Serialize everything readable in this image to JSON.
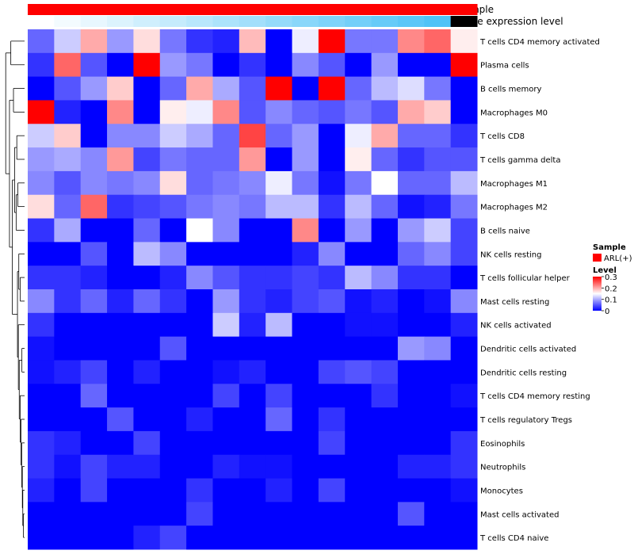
{
  "chart_data": {
    "type": "heatmap",
    "annotation_labels": {
      "sample": "Sample",
      "gene_expression_level": "Gene expression level"
    },
    "annotation_colors": {
      "sample": "#ff0000",
      "gene_expression_low": "#ffffff",
      "gene_expression_high": "#4fc3f7"
    },
    "gene_expression_levels": [
      0.0,
      0.07,
      0.13,
      0.2,
      0.27,
      0.33,
      0.4,
      0.47,
      0.53,
      0.6,
      0.67,
      0.73,
      0.8,
      0.87,
      0.93,
      1.0
    ],
    "rows": [
      "T cells CD4 memory activated",
      "Plasma cells",
      "B cells memory",
      "Macrophages M0",
      "T cells CD8",
      "T cells gamma delta",
      "Macrophages M1",
      "Macrophages M2",
      "B cells naive",
      "NK cells resting",
      "T cells follicular helper",
      "Mast cells resting",
      "NK cells activated",
      "Dendritic cells activated",
      "Dendritic cells resting",
      "T cells CD4 memory resting",
      "T cells regulatory  Tregs",
      "Eosinophils",
      "Neutrophils",
      "Monocytes",
      "Mast cells activated",
      "T cells CD4 naive"
    ],
    "values": [
      [
        0.06,
        0.12,
        0.2,
        0.09,
        0.17,
        0.07,
        0.03,
        0.02,
        0.19,
        0.0,
        0.14,
        0.3,
        0.07,
        0.07,
        0.22,
        0.24,
        0.16
      ],
      [
        0.03,
        0.24,
        0.05,
        0.0,
        0.3,
        0.09,
        0.07,
        0.0,
        0.03,
        0.0,
        0.08,
        0.05,
        0.0,
        0.09,
        0.0,
        0.0,
        0.3
      ],
      [
        0.0,
        0.05,
        0.09,
        0.18,
        0.0,
        0.06,
        0.2,
        0.1,
        0.05,
        0.3,
        0.0,
        0.3,
        0.06,
        0.11,
        0.13,
        0.07,
        0.0
      ],
      [
        0.3,
        0.02,
        0.0,
        0.22,
        0.0,
        0.16,
        0.14,
        0.22,
        0.05,
        0.08,
        0.06,
        0.05,
        0.07,
        0.05,
        0.2,
        0.18,
        0.0
      ],
      [
        0.12,
        0.18,
        0.0,
        0.08,
        0.08,
        0.12,
        0.1,
        0.06,
        0.26,
        0.06,
        0.09,
        0.0,
        0.14,
        0.2,
        0.06,
        0.06,
        0.03
      ],
      [
        0.09,
        0.1,
        0.08,
        0.21,
        0.04,
        0.07,
        0.06,
        0.06,
        0.21,
        0.0,
        0.09,
        0.0,
        0.16,
        0.06,
        0.03,
        0.05,
        0.05
      ],
      [
        0.08,
        0.05,
        0.08,
        0.07,
        0.08,
        0.17,
        0.06,
        0.07,
        0.08,
        0.14,
        0.07,
        0.01,
        0.07,
        0.15,
        0.06,
        0.06,
        0.11
      ],
      [
        0.17,
        0.06,
        0.24,
        0.03,
        0.04,
        0.05,
        0.07,
        0.08,
        0.07,
        0.11,
        0.11,
        0.03,
        0.11,
        0.06,
        0.01,
        0.02,
        0.07
      ],
      [
        0.03,
        0.1,
        0.0,
        0.0,
        0.06,
        0.0,
        0.15,
        0.08,
        0.0,
        0.0,
        0.22,
        0.0,
        0.09,
        0.0,
        0.09,
        0.12,
        0.04
      ],
      [
        0.0,
        0.0,
        0.05,
        0.0,
        0.11,
        0.08,
        0.0,
        0.0,
        0.0,
        0.0,
        0.02,
        0.08,
        0.0,
        0.0,
        0.06,
        0.08,
        0.04
      ],
      [
        0.03,
        0.03,
        0.02,
        0.0,
        0.0,
        0.02,
        0.08,
        0.05,
        0.03,
        0.03,
        0.04,
        0.03,
        0.11,
        0.08,
        0.03,
        0.03,
        0.0
      ],
      [
        0.08,
        0.03,
        0.06,
        0.02,
        0.06,
        0.03,
        0.0,
        0.09,
        0.03,
        0.02,
        0.04,
        0.05,
        0.01,
        0.02,
        0.0,
        0.01,
        0.08
      ],
      [
        0.03,
        0.0,
        0.0,
        0.0,
        0.0,
        0.0,
        0.0,
        0.12,
        0.02,
        0.11,
        0.0,
        0.0,
        0.01,
        0.01,
        0.0,
        0.0,
        0.02
      ],
      [
        0.01,
        0.0,
        0.0,
        0.0,
        0.0,
        0.05,
        0.0,
        0.0,
        0.0,
        0.0,
        0.0,
        0.0,
        0.0,
        0.0,
        0.09,
        0.08,
        0.0
      ],
      [
        0.01,
        0.02,
        0.04,
        0.0,
        0.02,
        0.0,
        0.0,
        0.01,
        0.02,
        0.0,
        0.0,
        0.04,
        0.05,
        0.04,
        0.0,
        0.0,
        0.0
      ],
      [
        0.0,
        0.0,
        0.06,
        0.0,
        0.0,
        0.0,
        0.0,
        0.04,
        0.0,
        0.04,
        0.0,
        0.0,
        0.0,
        0.03,
        0.0,
        0.0,
        0.01
      ],
      [
        0.0,
        0.0,
        0.0,
        0.05,
        0.0,
        0.0,
        0.02,
        0.0,
        0.0,
        0.06,
        0.0,
        0.03,
        0.0,
        0.0,
        0.0,
        0.0,
        0.0
      ],
      [
        0.03,
        0.02,
        0.0,
        0.0,
        0.04,
        0.0,
        0.0,
        0.0,
        0.0,
        0.0,
        0.0,
        0.04,
        0.0,
        0.0,
        0.0,
        0.0,
        0.03
      ],
      [
        0.03,
        0.01,
        0.04,
        0.02,
        0.02,
        0.0,
        0.0,
        0.02,
        0.01,
        0.01,
        0.0,
        0.0,
        0.0,
        0.0,
        0.02,
        0.02,
        0.03
      ],
      [
        0.02,
        0.0,
        0.04,
        0.0,
        0.0,
        0.0,
        0.03,
        0.0,
        0.0,
        0.02,
        0.0,
        0.04,
        0.0,
        0.0,
        0.0,
        0.0,
        0.01
      ],
      [
        0.0,
        0.0,
        0.0,
        0.0,
        0.0,
        0.0,
        0.04,
        0.0,
        0.0,
        0.0,
        0.0,
        0.0,
        0.0,
        0.0,
        0.05,
        0.0,
        0.0
      ],
      [
        0.0,
        0.0,
        0.0,
        0.0,
        0.02,
        0.04,
        0.0,
        0.0,
        0.0,
        0.0,
        0.0,
        0.0,
        0.0,
        0.0,
        0.0,
        0.0,
        0.0
      ]
    ],
    "dendrogram_order": [
      0,
      1,
      2,
      3,
      4,
      5,
      6,
      7,
      8,
      9,
      10,
      11,
      12,
      13,
      14,
      15,
      16,
      17,
      18,
      19,
      20,
      21
    ],
    "color_scale": {
      "low": "#0000ff",
      "mid": "#ffffff",
      "high": "#ff0000",
      "min": 0,
      "mid_value": 0.15,
      "max": 0.3
    },
    "legend": {
      "sample_title": "Sample",
      "sample_entry": "ARL(+)",
      "level_title": "Level",
      "ticks": [
        "0.3",
        "0.2",
        "0.1",
        "0"
      ],
      "tick_values": [
        0.3,
        0.2,
        0.1,
        0
      ],
      "placement": "right"
    }
  }
}
